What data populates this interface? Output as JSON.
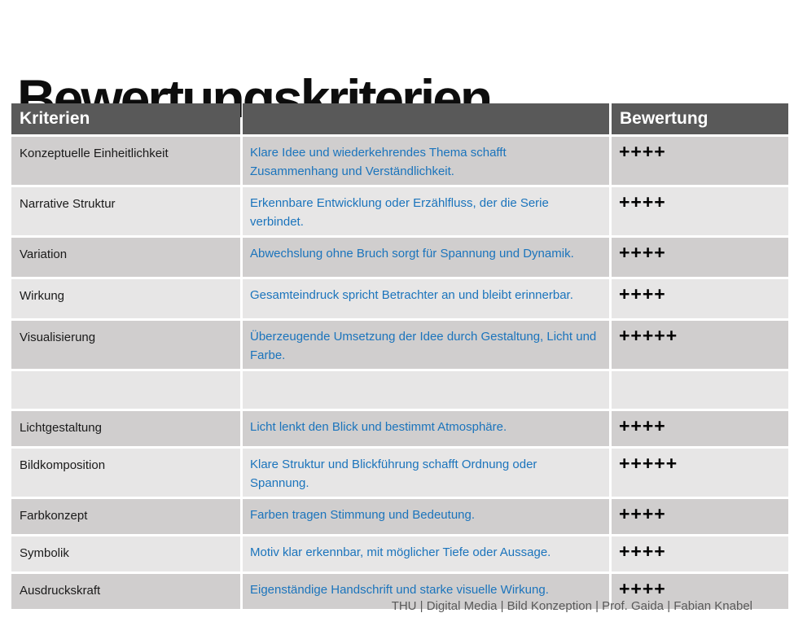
{
  "slide": {
    "title": "Bewertungskriterien",
    "footer": "THU | Digital Media | Bild Konzeption | Prof. Gaida | Fabian Knabel"
  },
  "colors": {
    "title_color": "#0d0d0d",
    "header_bg": "#595959",
    "header_text": "#ffffff",
    "row_dark": "#d0cece",
    "row_light": "#e7e6e6",
    "criterion_text": "#1a1a1a",
    "description_text": "#1b74bc",
    "rating_text": "#000000",
    "footer_text": "#595959"
  },
  "table": {
    "columns": [
      {
        "label": "Kriterien"
      },
      {
        "label": ""
      },
      {
        "label": "Bewertung"
      }
    ],
    "rows": [
      {
        "criterion": "Konzeptuelle Einheitlichkeit",
        "description": "Klare Idee und wiederkehrendes Thema schafft Zusammenhang und Verständlichkeit.",
        "rating": "++++",
        "band": "dark"
      },
      {
        "criterion": "Narrative Struktur",
        "description": "Erkennbare Entwicklung oder Erzählfluss, der die Serie verbindet.",
        "rating": "++++",
        "band": "light"
      },
      {
        "criterion": "Variation",
        "description": "Abwechslung ohne Bruch sorgt für Spannung und Dynamik.",
        "rating": "++++",
        "band": "dark"
      },
      {
        "criterion": "Wirkung",
        "description": "Gesamteindruck spricht Betrachter an und bleibt erinnerbar.",
        "rating": "++++",
        "band": "light"
      },
      {
        "criterion": "Visualisierung",
        "description": "Überzeugende Umsetzung der Idee durch Gestaltung, Licht und Farbe.",
        "rating": "+++++",
        "band": "dark"
      },
      {
        "criterion": "",
        "description": "",
        "rating": "",
        "band": "light"
      },
      {
        "criterion": "Lichtgestaltung",
        "description": "Licht lenkt den Blick und bestimmt Atmosphäre.",
        "rating": "++++",
        "band": "dark"
      },
      {
        "criterion": "Bildkomposition",
        "description": "Klare Struktur und Blickführung schafft Ordnung oder Spannung.",
        "rating": "+++++",
        "band": "light"
      },
      {
        "criterion": "Farbkonzept",
        "description": "Farben tragen Stimmung und Bedeutung.",
        "rating": "++++",
        "band": "dark"
      },
      {
        "criterion": "Symbolik",
        "description": "Motiv klar erkennbar, mit möglicher Tiefe oder Aussage.",
        "rating": "++++",
        "band": "light"
      },
      {
        "criterion": "Ausdruckskraft",
        "description": "Eigenständige Handschrift und starke visuelle Wirkung.",
        "rating": "++++",
        "band": "dark"
      }
    ]
  }
}
